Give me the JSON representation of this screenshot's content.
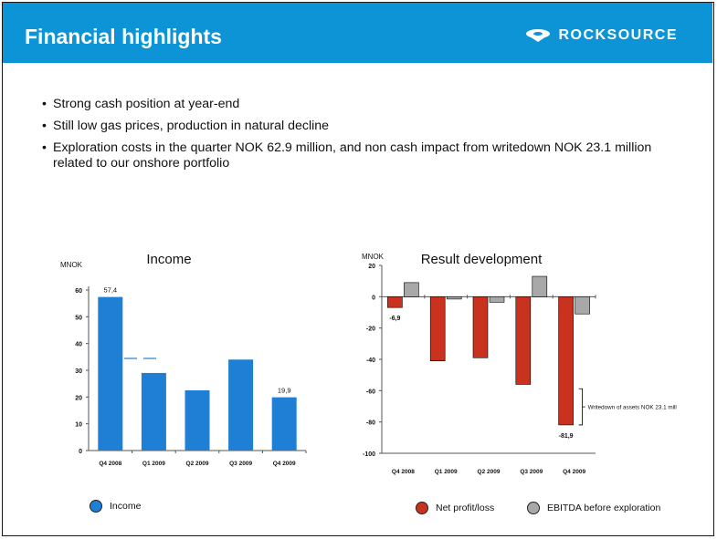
{
  "slide": {
    "title": "Financial highlights",
    "logo_text": "ROCKSOURCE",
    "logo_icon": "rocksource-logo-icon",
    "colors": {
      "header": "#0d94d6",
      "income": "#1f7fd4",
      "net_profit": "#c8321f",
      "ebitda": "#a8a8a8"
    }
  },
  "bullets": [
    "Strong cash position at year-end",
    "Still low gas prices, production in natural decline",
    "Exploration costs in the quarter NOK 62.9 million, and non cash impact from writedown NOK 23.1 million related to our onshore portfolio"
  ],
  "chart_data": [
    {
      "type": "bar",
      "title": "Income",
      "ylabel": "MNOK",
      "categories": [
        "Q4 2008",
        "Q1 2009",
        "Q2 2009",
        "Q3 2009",
        "Q4 2009"
      ],
      "series": [
        {
          "name": "Income",
          "values": [
            57.4,
            29,
            22.5,
            34,
            19.9
          ]
        }
      ],
      "data_labels": [
        "57,4",
        "",
        "",
        "",
        "19,9"
      ],
      "ylim": [
        0,
        60
      ],
      "yticks": [
        0,
        10,
        20,
        30,
        40,
        50,
        60
      ],
      "legend": "bottom-left",
      "grid": false
    },
    {
      "type": "bar",
      "title": "Result development",
      "ylabel": "MNOK",
      "categories": [
        "Q4 2008",
        "Q1 2009",
        "Q2 2009",
        "Q3 2009",
        "Q4 2009"
      ],
      "series": [
        {
          "name": "Net profit/loss",
          "values": [
            -6.9,
            -41,
            -39,
            -56,
            -81.9
          ]
        },
        {
          "name": "EBITDA before exploration",
          "values": [
            9,
            -1.5,
            -3.5,
            13,
            -11
          ]
        }
      ],
      "data_labels": [
        "-6,9",
        "",
        "",
        "",
        "-81,9"
      ],
      "ylim": [
        -100,
        20
      ],
      "yticks": [
        -100,
        -80,
        -60,
        -40,
        -20,
        0,
        20
      ],
      "annotation": "Writedown of assets NOK 23.1 mill",
      "legend": "bottom",
      "grid": false
    }
  ]
}
